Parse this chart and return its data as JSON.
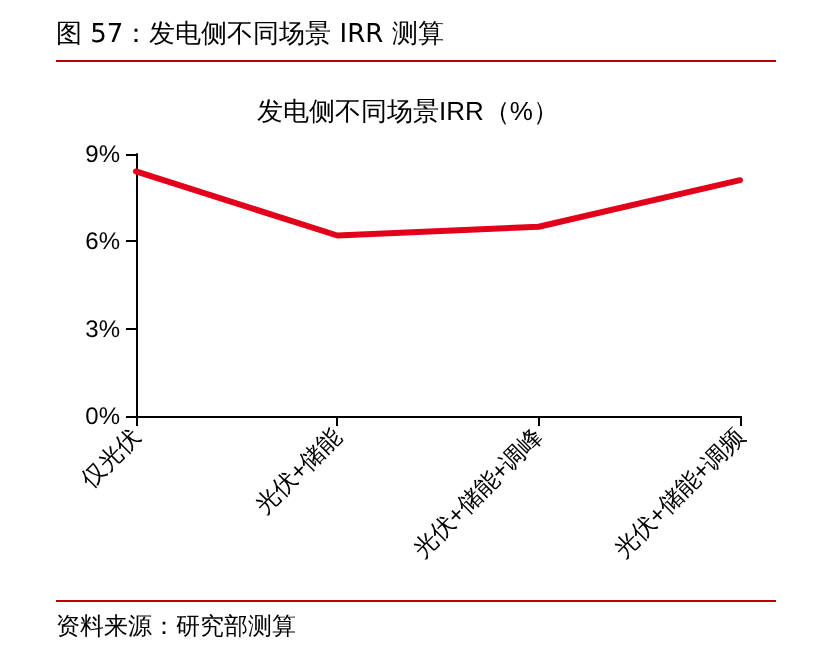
{
  "chart_data": {
    "type": "line",
    "title": "图 57：发电侧不同场景 IRR 测算",
    "subtitle": "发电侧不同场景IRR（%）",
    "annotations": [
      "资料来源：研究部测算"
    ],
    "categories": [
      "仅光伏",
      "光伏+储能",
      "光伏+储能+调峰",
      "光伏+储能+调频"
    ],
    "series": [
      {
        "color": "#e3001b",
        "values": [
          8.4,
          6.2,
          6.5,
          8.1
        ]
      }
    ],
    "ylim": [
      0,
      9
    ],
    "yticks": [
      {
        "value": 0,
        "label": "0%"
      },
      {
        "value": 3,
        "label": "3%"
      },
      {
        "value": 6,
        "label": "6%"
      },
      {
        "value": 9,
        "label": "9%"
      }
    ],
    "grid": false,
    "marker": "none",
    "line_style": "solid"
  }
}
